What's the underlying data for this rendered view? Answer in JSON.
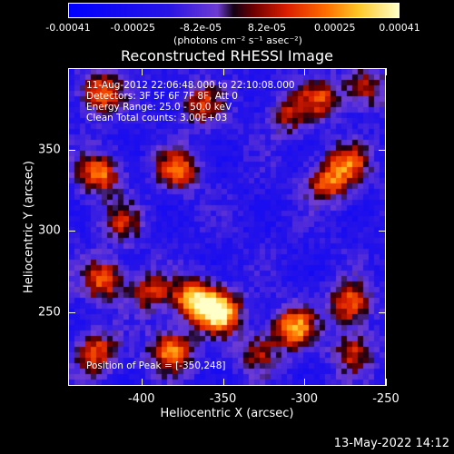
{
  "chart_data": {
    "type": "heatmap",
    "title": "Reconstructed RHESSI Image",
    "xlabel": "Heliocentric X (arcsec)",
    "ylabel": "Heliocentric Y (arcsec)",
    "xlim": [
      -445,
      -250
    ],
    "ylim": [
      205,
      400
    ],
    "x_ticks": [
      "-400",
      "-350",
      "-300",
      "-250"
    ],
    "x_tick_values": [
      -400,
      -350,
      -300,
      -250
    ],
    "y_ticks": [
      "250",
      "300",
      "350"
    ],
    "y_tick_values": [
      250,
      300,
      350
    ],
    "colorbar": {
      "range": [
        -0.00041,
        0.00041
      ],
      "tick_labels": [
        "-0.00041",
        "-0.00025",
        "-8.2e-05",
        "8.2e-05",
        "0.00025",
        "0.00041"
      ],
      "tick_values": [
        -0.00041,
        -0.00025,
        -8.2e-05,
        8.2e-05,
        0.00025,
        0.00041
      ],
      "units_label": "(photons cm⁻² s⁻¹ asec⁻²)"
    },
    "annotations": [
      "11-Aug-2012 22:06:48.000 to 22:10:08.000",
      "Detectors: 3F 5F 6F 7F 8F, Att 0",
      "Energy Range: 25.0 - 50.0 keV",
      "Clean     Total counts: 3.00E+03"
    ],
    "peak_label": "Position of Peak = [-350,248]",
    "peak_position": [
      -350,
      248
    ],
    "sources": [
      {
        "x": -352,
        "y": 250,
        "value": 0.00041
      },
      {
        "x": -368,
        "y": 258,
        "value": 0.0003
      },
      {
        "x": -382,
        "y": 226,
        "value": 0.00026
      },
      {
        "x": -425,
        "y": 385,
        "value": 0.00022
      },
      {
        "x": -426,
        "y": 335,
        "value": 0.00022
      },
      {
        "x": -424,
        "y": 270,
        "value": 0.0002
      },
      {
        "x": -428,
        "y": 225,
        "value": 0.00018
      },
      {
        "x": -378,
        "y": 338,
        "value": 0.0002
      },
      {
        "x": -363,
        "y": 378,
        "value": 0.00012
      },
      {
        "x": -306,
        "y": 240,
        "value": 0.00028
      },
      {
        "x": -272,
        "y": 255,
        "value": 0.00022
      },
      {
        "x": -286,
        "y": 330,
        "value": 0.00018
      },
      {
        "x": -272,
        "y": 342,
        "value": 0.00016
      },
      {
        "x": -290,
        "y": 382,
        "value": 0.00012
      },
      {
        "x": -262,
        "y": 388,
        "value": 0.0001
      },
      {
        "x": -270,
        "y": 225,
        "value": 0.00012
      },
      {
        "x": -412,
        "y": 305,
        "value": 8e-05
      },
      {
        "x": -395,
        "y": 262,
        "value": 0.00012
      },
      {
        "x": -328,
        "y": 225,
        "value": 8e-05
      },
      {
        "x": -310,
        "y": 372,
        "value": 8e-05
      }
    ]
  },
  "footer_date": "13-May-2022 14:12"
}
